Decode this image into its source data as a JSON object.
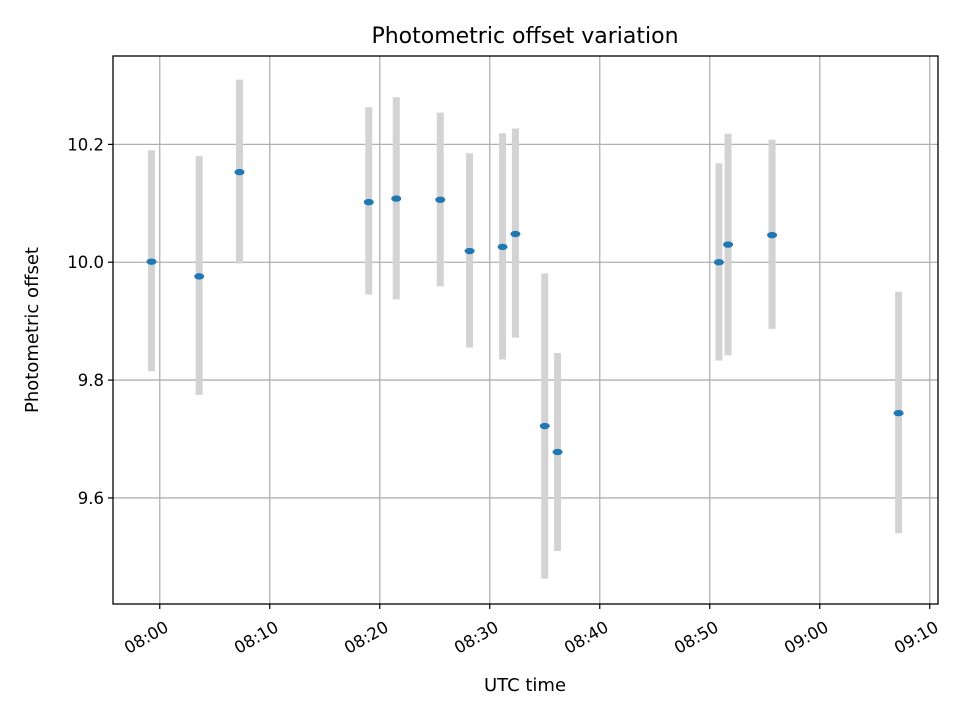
{
  "chart_data": {
    "type": "scatter",
    "title": "Photometric offset variation",
    "xlabel": "UTC time",
    "ylabel": "Photometric offset",
    "xlim": [
      "07:55:45",
      "09:10:45"
    ],
    "ylim": [
      9.42,
      10.35
    ],
    "xticks": [
      "08:00",
      "08:10",
      "08:20",
      "08:30",
      "08:40",
      "08:50",
      "09:00",
      "09:10"
    ],
    "yticks": [
      "9.6",
      "9.8",
      "10.0",
      "10.2"
    ],
    "grid": true,
    "marker_color": "#1f77b4",
    "errorbar_color": "#d3d3d3",
    "points": [
      {
        "x": "07:59:15",
        "y": 10.001,
        "yerr_low": 9.815,
        "yerr_high": 10.19
      },
      {
        "x": "08:03:35",
        "y": 9.976,
        "yerr_low": 9.775,
        "yerr_high": 10.18
      },
      {
        "x": "08:07:15",
        "y": 10.153,
        "yerr_low": 9.998,
        "yerr_high": 10.31
      },
      {
        "x": "08:19:00",
        "y": 10.102,
        "yerr_low": 9.945,
        "yerr_high": 10.263
      },
      {
        "x": "08:21:30",
        "y": 10.108,
        "yerr_low": 9.937,
        "yerr_high": 10.28
      },
      {
        "x": "08:25:30",
        "y": 10.106,
        "yerr_low": 9.959,
        "yerr_high": 10.254
      },
      {
        "x": "08:28:10",
        "y": 10.019,
        "yerr_low": 9.855,
        "yerr_high": 10.185
      },
      {
        "x": "08:31:10",
        "y": 10.026,
        "yerr_low": 9.835,
        "yerr_high": 10.219
      },
      {
        "x": "08:32:20",
        "y": 10.048,
        "yerr_low": 9.872,
        "yerr_high": 10.227
      },
      {
        "x": "08:35:00",
        "y": 9.722,
        "yerr_low": 9.463,
        "yerr_high": 9.981
      },
      {
        "x": "08:36:10",
        "y": 9.678,
        "yerr_low": 9.51,
        "yerr_high": 9.846
      },
      {
        "x": "08:50:50",
        "y": 10.0,
        "yerr_low": 9.833,
        "yerr_high": 10.168
      },
      {
        "x": "08:51:40",
        "y": 10.03,
        "yerr_low": 9.842,
        "yerr_high": 10.218
      },
      {
        "x": "08:55:40",
        "y": 10.046,
        "yerr_low": 9.887,
        "yerr_high": 10.208
      },
      {
        "x": "09:07:10",
        "y": 9.744,
        "yerr_low": 9.54,
        "yerr_high": 9.95
      }
    ]
  }
}
